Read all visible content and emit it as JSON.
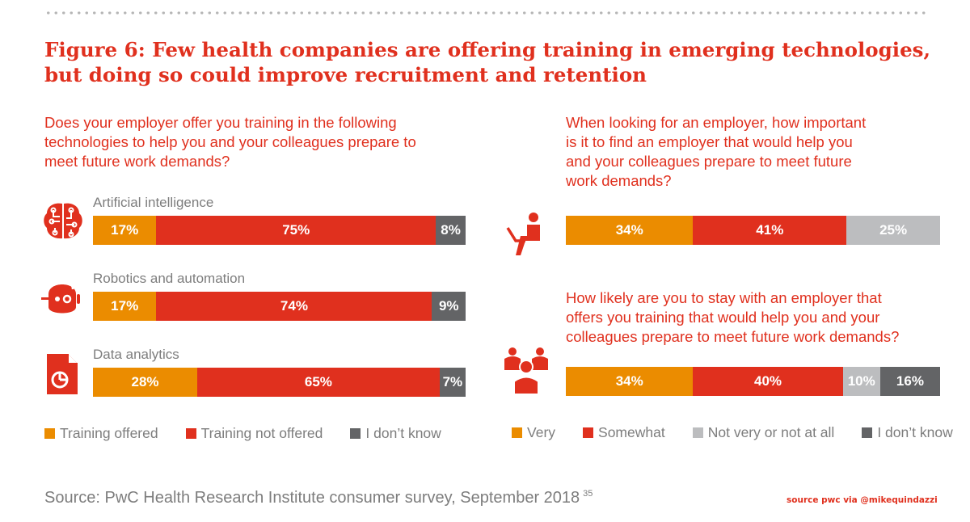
{
  "title_line1": "Figure 6: Few health companies are offering training in emerging technologies,",
  "title_line2": "but doing so could improve recruitment and retention",
  "colors": {
    "orange": "#eb8c00",
    "red": "#e0301e",
    "dark_gray": "#636466",
    "light_gray": "#bcbdbf"
  },
  "chart_data": [
    {
      "type": "bar",
      "stacked": true,
      "orientation": "horizontal",
      "title": "Does your employer offer you training in the following technologies to help you and your colleagues prepare to meet future work demands?",
      "title_lines": [
        "Does your employer offer you training in the following",
        "technologies to help you and your colleagues prepare to",
        "meet future work demands?"
      ],
      "categories": [
        "Artificial intelligence",
        "Robotics and automation",
        "Data analytics"
      ],
      "series": [
        {
          "name": "Training offered",
          "color": "#eb8c00",
          "values": [
            17,
            17,
            28
          ]
        },
        {
          "name": "Training not offered",
          "color": "#e0301e",
          "values": [
            75,
            74,
            65
          ]
        },
        {
          "name": "I don’t know",
          "color": "#636466",
          "values": [
            8,
            9,
            7
          ]
        }
      ],
      "legend": "bottom",
      "unit": "%"
    },
    {
      "type": "bar",
      "stacked": true,
      "orientation": "horizontal",
      "categories": [
        "When looking for an employer, how important is it to find an employer that would help you and your colleagues prepare to meet future work demands?",
        "How likely are you to stay with an employer that offers you training that would help you and your colleagues prepare to meet future work demands?"
      ],
      "question_lines": [
        [
          "When looking for an employer, how important",
          "is it to find an employer that would help you",
          "and your colleagues prepare to meet future",
          "work demands?"
        ],
        [
          "How likely are you to stay with an employer that",
          "offers you training that would help you and your",
          "colleagues prepare to meet future work demands?"
        ]
      ],
      "series": [
        {
          "name": "Very",
          "color": "#eb8c00",
          "values": [
            34,
            34
          ]
        },
        {
          "name": "Somewhat",
          "color": "#e0301e",
          "values": [
            41,
            40
          ]
        },
        {
          "name": "Not very or not at all",
          "color": "#bcbdbf",
          "values": [
            25,
            10
          ]
        },
        {
          "name": "I don’t know",
          "color": "#636466",
          "values": [
            0,
            16
          ]
        }
      ],
      "legend": "bottom",
      "unit": "%"
    }
  ],
  "source": "Source: PwC Health Research Institute consumer survey, September 2018",
  "footnote": "35",
  "watermark": "source pwc via @mikequindazzi"
}
